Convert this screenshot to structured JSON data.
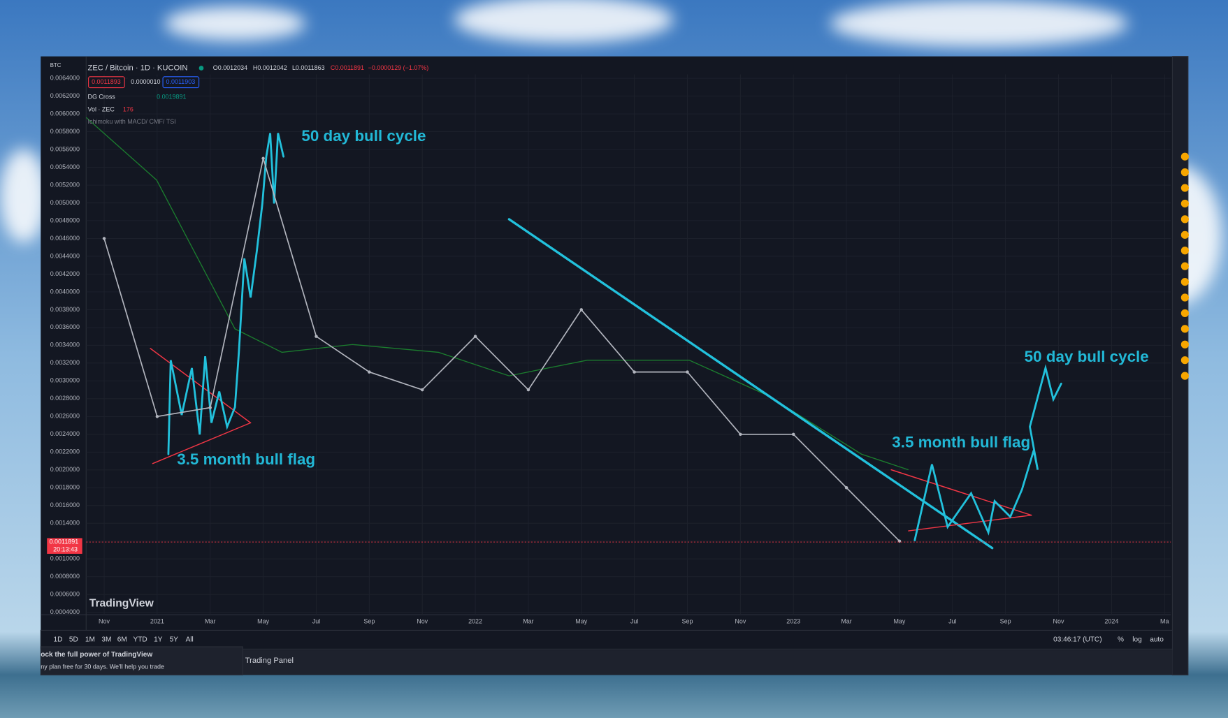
{
  "toolbar": {
    "currency": "BTC",
    "symbol": "ZEC / Bitcoin · 1D · KUCOIN",
    "ohlc": [
      "O0.0012034",
      "H0.0012042",
      "L0.0011863",
      "C0.0011891",
      "−0.0000129 (−1.07%)"
    ],
    "prices": [
      "0.0011893",
      "0.0000010",
      "0.0011903"
    ],
    "indicators": [
      {
        "name": "DG Cross",
        "value": "0.0019891"
      },
      {
        "name": "Vol · ZEC",
        "value": "176"
      },
      {
        "name": "Ichimoku with MACD/ CMF/ TSI"
      }
    ]
  },
  "chart_data": {
    "type": "line",
    "color": "#b2b5be",
    "categories": [
      "Nov",
      "2021",
      "Mar",
      "May",
      "Jul",
      "Sep",
      "Nov",
      "2022",
      "Mar",
      "May",
      "Jul",
      "Sep",
      "Nov",
      "2023",
      "Mar",
      "May",
      "Jul",
      "Sep",
      "Nov",
      "2024",
      "Ma"
    ],
    "values": [
      0.0046,
      0.0026,
      0.0027,
      0.0055,
      0.0035,
      0.0031,
      0.0029,
      0.0035,
      0.0029,
      0.0038,
      0.0031,
      0.0031,
      0.0024,
      0.0024,
      0.0018,
      0.0012,
      null,
      null,
      null,
      null,
      null
    ],
    "last_price": 0.0011891,
    "countdown": "20:13:43",
    "ylim": [
      0.0004,
      0.0064
    ],
    "yticks": [
      {
        "value": 0.0004,
        "label": "0.0004000"
      },
      {
        "value": 0.0006,
        "label": "0.0006000"
      },
      {
        "value": 0.0008,
        "label": "0.0008000"
      },
      {
        "value": 0.001,
        "label": "0.0010000"
      },
      {
        "value": 0.0012,
        "label": "0.0012000"
      },
      {
        "value": 0.0014,
        "label": "0.0014000"
      },
      {
        "value": 0.0016,
        "label": "0.0016000"
      },
      {
        "value": 0.0018,
        "label": "0.0018000"
      },
      {
        "value": 0.002,
        "label": "0.0020000"
      },
      {
        "value": 0.0022,
        "label": "0.0022000"
      },
      {
        "value": 0.0024,
        "label": "0.0024000"
      },
      {
        "value": 0.0026,
        "label": "0.0026000"
      },
      {
        "value": 0.0028,
        "label": "0.0028000"
      },
      {
        "value": 0.003,
        "label": "0.0030000"
      },
      {
        "value": 0.0032,
        "label": "0.0032000"
      },
      {
        "value": 0.0034,
        "label": "0.0034000"
      },
      {
        "value": 0.0036,
        "label": "0.0036000"
      },
      {
        "value": 0.0038,
        "label": "0.0038000"
      },
      {
        "value": 0.004,
        "label": "0.0040000"
      },
      {
        "value": 0.0042,
        "label": "0.0042000"
      },
      {
        "value": 0.0044,
        "label": "0.0044000"
      },
      {
        "value": 0.0046,
        "label": "0.0046000"
      },
      {
        "value": 0.0048,
        "label": "0.0048000"
      },
      {
        "value": 0.005,
        "label": "0.0050000"
      },
      {
        "value": 0.0052,
        "label": "0.0052000"
      },
      {
        "value": 0.0054,
        "label": "0.0054000"
      },
      {
        "value": 0.0056,
        "label": "0.0056000"
      },
      {
        "value": 0.0058,
        "label": "0.0058000"
      },
      {
        "value": 0.006,
        "label": "0.0060000"
      },
      {
        "value": 0.0062,
        "label": "0.0062000"
      },
      {
        "value": 0.0064,
        "label": "0.0064000"
      }
    ],
    "grid": true,
    "annotations": [
      "50 day bull cycle",
      "3.5 month bull flag",
      "50 day bull cycle",
      "3.5 month bull flag"
    ]
  },
  "bottom_bar": {
    "ranges": [
      "1D",
      "5D",
      "1M",
      "3M",
      "6M",
      "YTD",
      "1Y",
      "5Y",
      "All"
    ],
    "time": "03:46:17 (UTC)",
    "options": [
      "%",
      "log",
      "auto"
    ]
  },
  "trading_panel": "Trading Panel",
  "promo": {
    "title": "ock the full power of TradingView",
    "text": "ny plan free for 30 days. We'll help you trade"
  },
  "logo": "TradingView"
}
